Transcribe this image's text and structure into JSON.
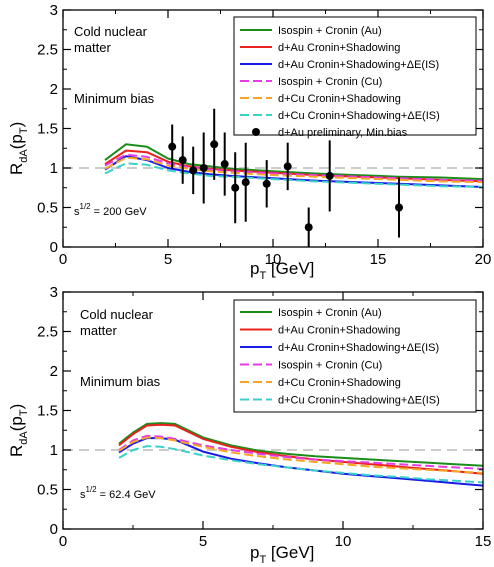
{
  "chart_data": [
    {
      "type": "line",
      "xlabel": "p",
      "xlabel_sub": "T",
      "xlabel_unit": " [GeV]",
      "ylabel": "R",
      "ylabel_sub": "dA",
      "ylabel_tail": "(p",
      "ylabel_sub2": "T",
      "ylabel_end": ")",
      "xlim": [
        0,
        20
      ],
      "ylim": [
        0,
        3
      ],
      "xticks": [
        0,
        5,
        10,
        15,
        20
      ],
      "yticks": [
        0,
        0.5,
        1,
        1.5,
        2,
        2.5,
        3
      ],
      "reference_line": 1,
      "annotations": {
        "title1": "Cold nuclear",
        "title2": "matter",
        "bias": "Minimum bias",
        "energy_base": "s",
        "energy_sup": "1/2",
        "energy_val": " = 200 GeV"
      },
      "series": [
        {
          "name": "Isospin + Cronin (Au)",
          "color": "#1a8c1a",
          "dash": "solid",
          "x": [
            2,
            3,
            4,
            5,
            6,
            7,
            8,
            10,
            12,
            14,
            16,
            18,
            20
          ],
          "values": [
            1.1,
            1.3,
            1.27,
            1.12,
            1.05,
            1.02,
            0.99,
            0.96,
            0.93,
            0.91,
            0.89,
            0.88,
            0.86
          ]
        },
        {
          "name": "d+Au Cronin+Shadowing",
          "color": "#e8231e",
          "dash": "solid",
          "x": [
            2,
            3,
            4,
            5,
            6,
            7,
            8,
            10,
            12,
            14,
            16,
            18,
            20
          ],
          "values": [
            1.05,
            1.22,
            1.2,
            1.08,
            1.02,
            0.99,
            0.97,
            0.94,
            0.91,
            0.89,
            0.87,
            0.85,
            0.83
          ]
        },
        {
          "name": "d+Au Cronin+Shadowing+ΔE(IS)",
          "color": "#1a1ae8",
          "dash": "solid",
          "x": [
            2,
            3,
            4,
            5,
            6,
            7,
            8,
            10,
            12,
            14,
            16,
            18,
            20
          ],
          "values": [
            0.98,
            1.15,
            1.1,
            1.0,
            0.95,
            0.92,
            0.9,
            0.87,
            0.84,
            0.82,
            0.8,
            0.78,
            0.76
          ]
        },
        {
          "name": "Isospin + Cronin (Cu)",
          "color": "#e63ce6",
          "dash": "dash",
          "x": [
            2,
            3,
            4,
            5,
            6,
            7,
            8,
            10,
            12,
            14,
            16,
            18,
            20
          ],
          "values": [
            1.03,
            1.17,
            1.14,
            1.06,
            1.01,
            0.98,
            0.96,
            0.93,
            0.91,
            0.89,
            0.87,
            0.85,
            0.84
          ]
        },
        {
          "name": "d+Cu Cronin+Shadowing",
          "color": "#f5a623",
          "dash": "dash",
          "x": [
            2,
            3,
            4,
            5,
            6,
            7,
            8,
            10,
            12,
            14,
            16,
            18,
            20
          ],
          "values": [
            0.99,
            1.13,
            1.11,
            1.03,
            0.99,
            0.96,
            0.94,
            0.91,
            0.89,
            0.87,
            0.85,
            0.83,
            0.82
          ]
        },
        {
          "name": "d+Cu Cronin+Shadowing+ΔE(IS)",
          "color": "#3ad1c8",
          "dash": "dash",
          "x": [
            2,
            3,
            4,
            5,
            6,
            7,
            8,
            10,
            12,
            14,
            16,
            18,
            20
          ],
          "values": [
            0.93,
            1.06,
            1.04,
            0.97,
            0.93,
            0.9,
            0.89,
            0.86,
            0.83,
            0.81,
            0.79,
            0.77,
            0.76
          ]
        }
      ],
      "points": {
        "name": "d+Au preliminary, Min.bias",
        "color": "#000000",
        "x": [
          5.2,
          5.7,
          6.2,
          6.7,
          7.2,
          7.7,
          8.2,
          8.7,
          9.7,
          10.7,
          12.7,
          11.7,
          16.0
        ],
        "values": [
          1.27,
          1.1,
          0.97,
          1.0,
          1.3,
          1.05,
          0.75,
          0.82,
          0.8,
          1.02,
          0.9,
          0.25,
          0.5
        ],
        "err": [
          0.28,
          0.3,
          0.3,
          0.45,
          0.45,
          0.4,
          0.45,
          0.5,
          0.3,
          0.3,
          0.45,
          0.25,
          0.38
        ]
      },
      "legend": "top-right"
    },
    {
      "type": "line",
      "xlabel": "p",
      "xlabel_sub": "T",
      "xlabel_unit": " [GeV]",
      "ylabel": "R",
      "ylabel_sub": "dA",
      "ylabel_tail": "(p",
      "ylabel_sub2": "T",
      "ylabel_end": ")",
      "xlim": [
        0,
        15
      ],
      "ylim": [
        0,
        3
      ],
      "xticks": [
        0,
        5,
        10,
        15
      ],
      "yticks": [
        0,
        0.5,
        1,
        1.5,
        2,
        2.5,
        3
      ],
      "reference_line": 1,
      "annotations": {
        "title1": "Cold nuclear",
        "title2": "matter",
        "bias": "Minimum bias",
        "energy_base": "s",
        "energy_sup": "1/2",
        "energy_val": " = 62.4 GeV"
      },
      "series": [
        {
          "name": "Isospin + Cronin (Au)",
          "color": "#1a8c1a",
          "dash": "solid",
          "x": [
            2,
            2.5,
            3,
            3.5,
            4,
            5,
            6,
            7,
            8,
            9,
            10,
            11,
            12,
            13,
            14,
            15
          ],
          "values": [
            1.08,
            1.22,
            1.33,
            1.34,
            1.33,
            1.16,
            1.06,
            0.99,
            0.95,
            0.92,
            0.9,
            0.88,
            0.86,
            0.84,
            0.82,
            0.8
          ]
        },
        {
          "name": "d+Au Cronin+Shadowing",
          "color": "#e8231e",
          "dash": "solid",
          "x": [
            2,
            2.5,
            3,
            3.5,
            4,
            5,
            6,
            7,
            8,
            9,
            10,
            11,
            12,
            13,
            14,
            15
          ],
          "values": [
            1.06,
            1.2,
            1.31,
            1.32,
            1.31,
            1.14,
            1.04,
            0.97,
            0.92,
            0.88,
            0.85,
            0.82,
            0.79,
            0.76,
            0.73,
            0.7
          ]
        },
        {
          "name": "d+Au Cronin+Shadowing+ΔE(IS)",
          "color": "#1a1ae8",
          "dash": "solid",
          "x": [
            2,
            2.5,
            3,
            3.5,
            4,
            5,
            6,
            7,
            8,
            9,
            10,
            11,
            12,
            13,
            14,
            15
          ],
          "values": [
            0.97,
            1.08,
            1.15,
            1.15,
            1.13,
            0.98,
            0.89,
            0.83,
            0.78,
            0.74,
            0.7,
            0.67,
            0.64,
            0.61,
            0.58,
            0.55
          ]
        },
        {
          "name": "Isospin + Cronin (Cu)",
          "color": "#e63ce6",
          "dash": "dash",
          "x": [
            2,
            2.5,
            3,
            3.5,
            4,
            5,
            6,
            7,
            8,
            9,
            10,
            11,
            12,
            13,
            14,
            15
          ],
          "values": [
            1.0,
            1.12,
            1.18,
            1.17,
            1.14,
            1.06,
            1.0,
            0.95,
            0.91,
            0.88,
            0.86,
            0.84,
            0.82,
            0.8,
            0.78,
            0.76
          ]
        },
        {
          "name": "d+Cu Cronin+Shadowing",
          "color": "#f5a623",
          "dash": "dash",
          "x": [
            2,
            2.5,
            3,
            3.5,
            4,
            5,
            6,
            7,
            8,
            9,
            10,
            11,
            12,
            13,
            14,
            15
          ],
          "values": [
            0.99,
            1.1,
            1.16,
            1.15,
            1.12,
            1.04,
            0.97,
            0.92,
            0.88,
            0.85,
            0.82,
            0.79,
            0.77,
            0.75,
            0.73,
            0.71
          ]
        },
        {
          "name": "d+Cu Cronin+Shadowing+ΔE(IS)",
          "color": "#3ad1c8",
          "dash": "dash",
          "x": [
            2,
            2.5,
            3,
            3.5,
            4,
            5,
            6,
            7,
            8,
            9,
            10,
            11,
            12,
            13,
            14,
            15
          ],
          "values": [
            0.9,
            1.0,
            1.05,
            1.04,
            1.01,
            0.93,
            0.87,
            0.82,
            0.78,
            0.74,
            0.71,
            0.68,
            0.66,
            0.63,
            0.61,
            0.59
          ]
        }
      ],
      "legend": "top-right"
    }
  ]
}
